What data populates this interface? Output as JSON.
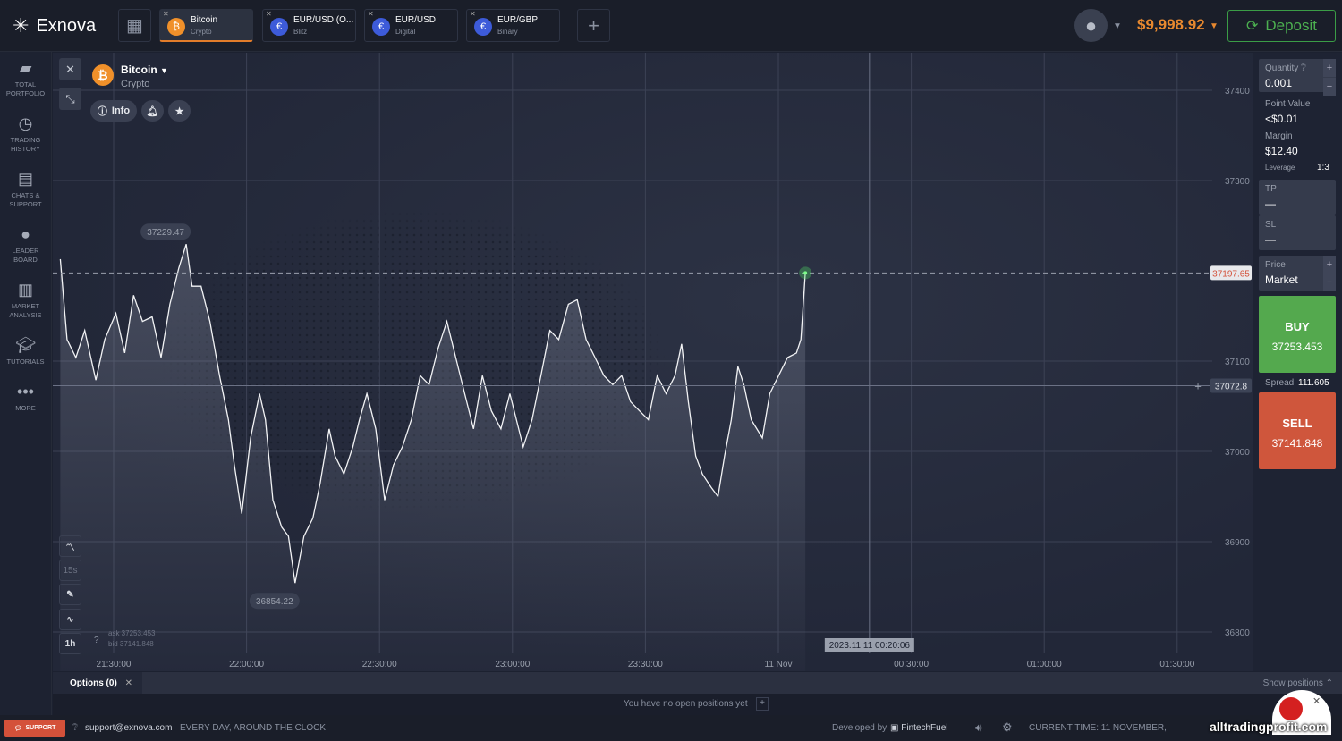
{
  "header": {
    "logo": "Exnova",
    "tabs": [
      {
        "title": "Bitcoin",
        "subtitle": "Crypto",
        "icon": "bitcoin-icon",
        "active": true
      },
      {
        "title": "EUR/USD (O...",
        "subtitle": "Blitz",
        "icon": "eur-usd-otc-flag-icon",
        "active": false
      },
      {
        "title": "EUR/USD",
        "subtitle": "Digital",
        "icon": "eur-usd-flag-icon",
        "active": false
      },
      {
        "title": "EUR/GBP",
        "subtitle": "Binary",
        "icon": "eur-gbp-flag-icon",
        "active": false
      }
    ],
    "balance": "$9,998.92",
    "deposit_label": "Deposit"
  },
  "sidebar": {
    "items": [
      {
        "label": "TOTAL PORTFOLIO",
        "icon": "briefcase-icon"
      },
      {
        "label": "TRADING HISTORY",
        "icon": "clock-icon"
      },
      {
        "label": "CHATS & SUPPORT",
        "icon": "chat-icon"
      },
      {
        "label": "LEADER BOARD",
        "icon": "medal-icon"
      },
      {
        "label": "MARKET ANALYSIS",
        "icon": "bar-chart-icon"
      },
      {
        "label": "TUTORIALS",
        "icon": "graduation-cap-icon"
      },
      {
        "label": "MORE",
        "icon": "more-dots-icon"
      }
    ]
  },
  "asset": {
    "name": "Bitcoin",
    "category": "Crypto",
    "info_label": "Info"
  },
  "chart_tools": {
    "interval_label": "15s",
    "timeframe_label": "1h",
    "ask": "ask 37253.453",
    "bid": "bid 37141.848"
  },
  "chart_data": {
    "type": "line",
    "title": "",
    "ylim": [
      36780,
      37420
    ],
    "y_ticks": [
      37400,
      37300,
      37100,
      37000,
      36900,
      36800
    ],
    "x_ticks": [
      "21:30:00",
      "22:00:00",
      "22:30:00",
      "23:00:00",
      "23:30:00",
      "11 Nov",
      "00:30:00",
      "01:00:00",
      "01:30:00"
    ],
    "grid": true,
    "high_label": "37229.47",
    "low_label": "36854.22",
    "current_price": "37197.65",
    "crosshair_price": "37072.8",
    "crosshair_time": "2023.11.11 00:20:06",
    "points": [
      [
        "21:18:00",
        37213
      ],
      [
        "21:19:30",
        37124
      ],
      [
        "21:21:30",
        37104
      ],
      [
        "21:23:30",
        37134
      ],
      [
        "21:26:00",
        37079
      ],
      [
        "21:28:00",
        37124
      ],
      [
        "21:30:30",
        37153
      ],
      [
        "21:32:30",
        37109
      ],
      [
        "21:34:30",
        37173
      ],
      [
        "21:36:30",
        37144
      ],
      [
        "21:38:40",
        37149
      ],
      [
        "21:40:40",
        37104
      ],
      [
        "21:42:40",
        37163
      ],
      [
        "21:44:40",
        37203
      ],
      [
        "21:46:20",
        37229.47
      ],
      [
        "21:47:40",
        37183
      ],
      [
        "21:49:40",
        37183
      ],
      [
        "21:51:40",
        37144
      ],
      [
        "21:53:50",
        37084
      ],
      [
        "21:55:50",
        37035
      ],
      [
        "21:57:10",
        36985
      ],
      [
        "21:58:50",
        36931
      ],
      [
        "22:00:50",
        37015
      ],
      [
        "22:02:50",
        37064
      ],
      [
        "22:04:10",
        37035
      ],
      [
        "22:05:50",
        36946
      ],
      [
        "22:07:50",
        36916
      ],
      [
        "22:09:20",
        36906
      ],
      [
        "22:10:50",
        36854.22
      ],
      [
        "22:12:50",
        36906
      ],
      [
        "22:14:50",
        36926
      ],
      [
        "22:16:30",
        36965
      ],
      [
        "22:18:30",
        37025
      ],
      [
        "22:19:50",
        36995
      ],
      [
        "22:21:50",
        36975
      ],
      [
        "22:23:50",
        37005
      ],
      [
        "22:25:20",
        37035
      ],
      [
        "22:27:00",
        37064
      ],
      [
        "22:29:00",
        37025
      ],
      [
        "22:31:00",
        36946
      ],
      [
        "22:33:00",
        36985
      ],
      [
        "22:35:00",
        37005
      ],
      [
        "22:37:00",
        37035
      ],
      [
        "22:39:00",
        37084
      ],
      [
        "22:41:00",
        37074
      ],
      [
        "22:43:00",
        37114
      ],
      [
        "22:45:00",
        37144
      ],
      [
        "22:47:00",
        37104
      ],
      [
        "22:49:00",
        37064
      ],
      [
        "22:51:00",
        37025
      ],
      [
        "22:53:00",
        37084
      ],
      [
        "22:55:00",
        37045
      ],
      [
        "22:57:10",
        37025
      ],
      [
        "22:59:10",
        37064
      ],
      [
        "23:02:10",
        37005
      ],
      [
        "23:04:10",
        37035
      ],
      [
        "23:06:10",
        37084
      ],
      [
        "23:08:10",
        37134
      ],
      [
        "23:10:10",
        37124
      ],
      [
        "23:12:20",
        37163
      ],
      [
        "23:14:20",
        37168
      ],
      [
        "23:16:20",
        37124
      ],
      [
        "23:18:20",
        37104
      ],
      [
        "23:20:20",
        37084
      ],
      [
        "23:22:20",
        37074
      ],
      [
        "23:24:20",
        37084
      ],
      [
        "23:26:20",
        37055
      ],
      [
        "23:28:20",
        37045
      ],
      [
        "23:30:20",
        37035
      ],
      [
        "23:32:20",
        37084
      ],
      [
        "23:34:20",
        37064
      ],
      [
        "23:36:20",
        37084
      ],
      [
        "23:37:50",
        37119
      ],
      [
        "23:39:20",
        37055
      ],
      [
        "23:41:00",
        36995
      ],
      [
        "23:42:30",
        36975
      ],
      [
        "23:44:30",
        36960
      ],
      [
        "23:46:00",
        36950
      ],
      [
        "23:47:30",
        36995
      ],
      [
        "23:49:00",
        37035
      ],
      [
        "23:50:30",
        37094
      ],
      [
        "23:51:50",
        37074
      ],
      [
        "23:53:30",
        37035
      ],
      [
        "23:56:00",
        37015
      ],
      [
        "23:57:40",
        37064
      ],
      [
        "23:59:40",
        37084
      ],
      [
        "00:01:40",
        37104
      ],
      [
        "00:03:40",
        37109
      ],
      [
        "00:04:40",
        37124
      ],
      [
        "00:05:40",
        37197.65
      ]
    ]
  },
  "order_panel": {
    "quantity_label": "Quantity",
    "quantity": "0.001",
    "point_value_label": "Point Value",
    "point_value": "<$0.01",
    "margin_label": "Margin",
    "margin": "$12.40",
    "leverage_label": "Leverage",
    "leverage": "1:3",
    "tp_label": "TP",
    "tp": "—",
    "sl_label": "SL",
    "sl": "—",
    "price_label": "Price",
    "price": "Market",
    "buy_label": "BUY",
    "buy_price": "37253.453",
    "spread_label": "Spread",
    "spread": "111.605",
    "sell_label": "SELL",
    "sell_price": "37141.848",
    "buy_color": "#54a94e",
    "sell_color": "#cf563c"
  },
  "options": {
    "tab_label": "Options (0)",
    "show_positions": "Show positions",
    "empty_text": "You have no open positions yet"
  },
  "footer": {
    "support_label": "SUPPORT",
    "email": "support@exnova.com",
    "hours": "EVERY DAY, AROUND THE CLOCK",
    "developed_by": "Developed by",
    "developer": "FintechFuel",
    "current_time": "CURRENT TIME: 11 NOVEMBER,"
  },
  "watermark": "alltradingprofit.com"
}
